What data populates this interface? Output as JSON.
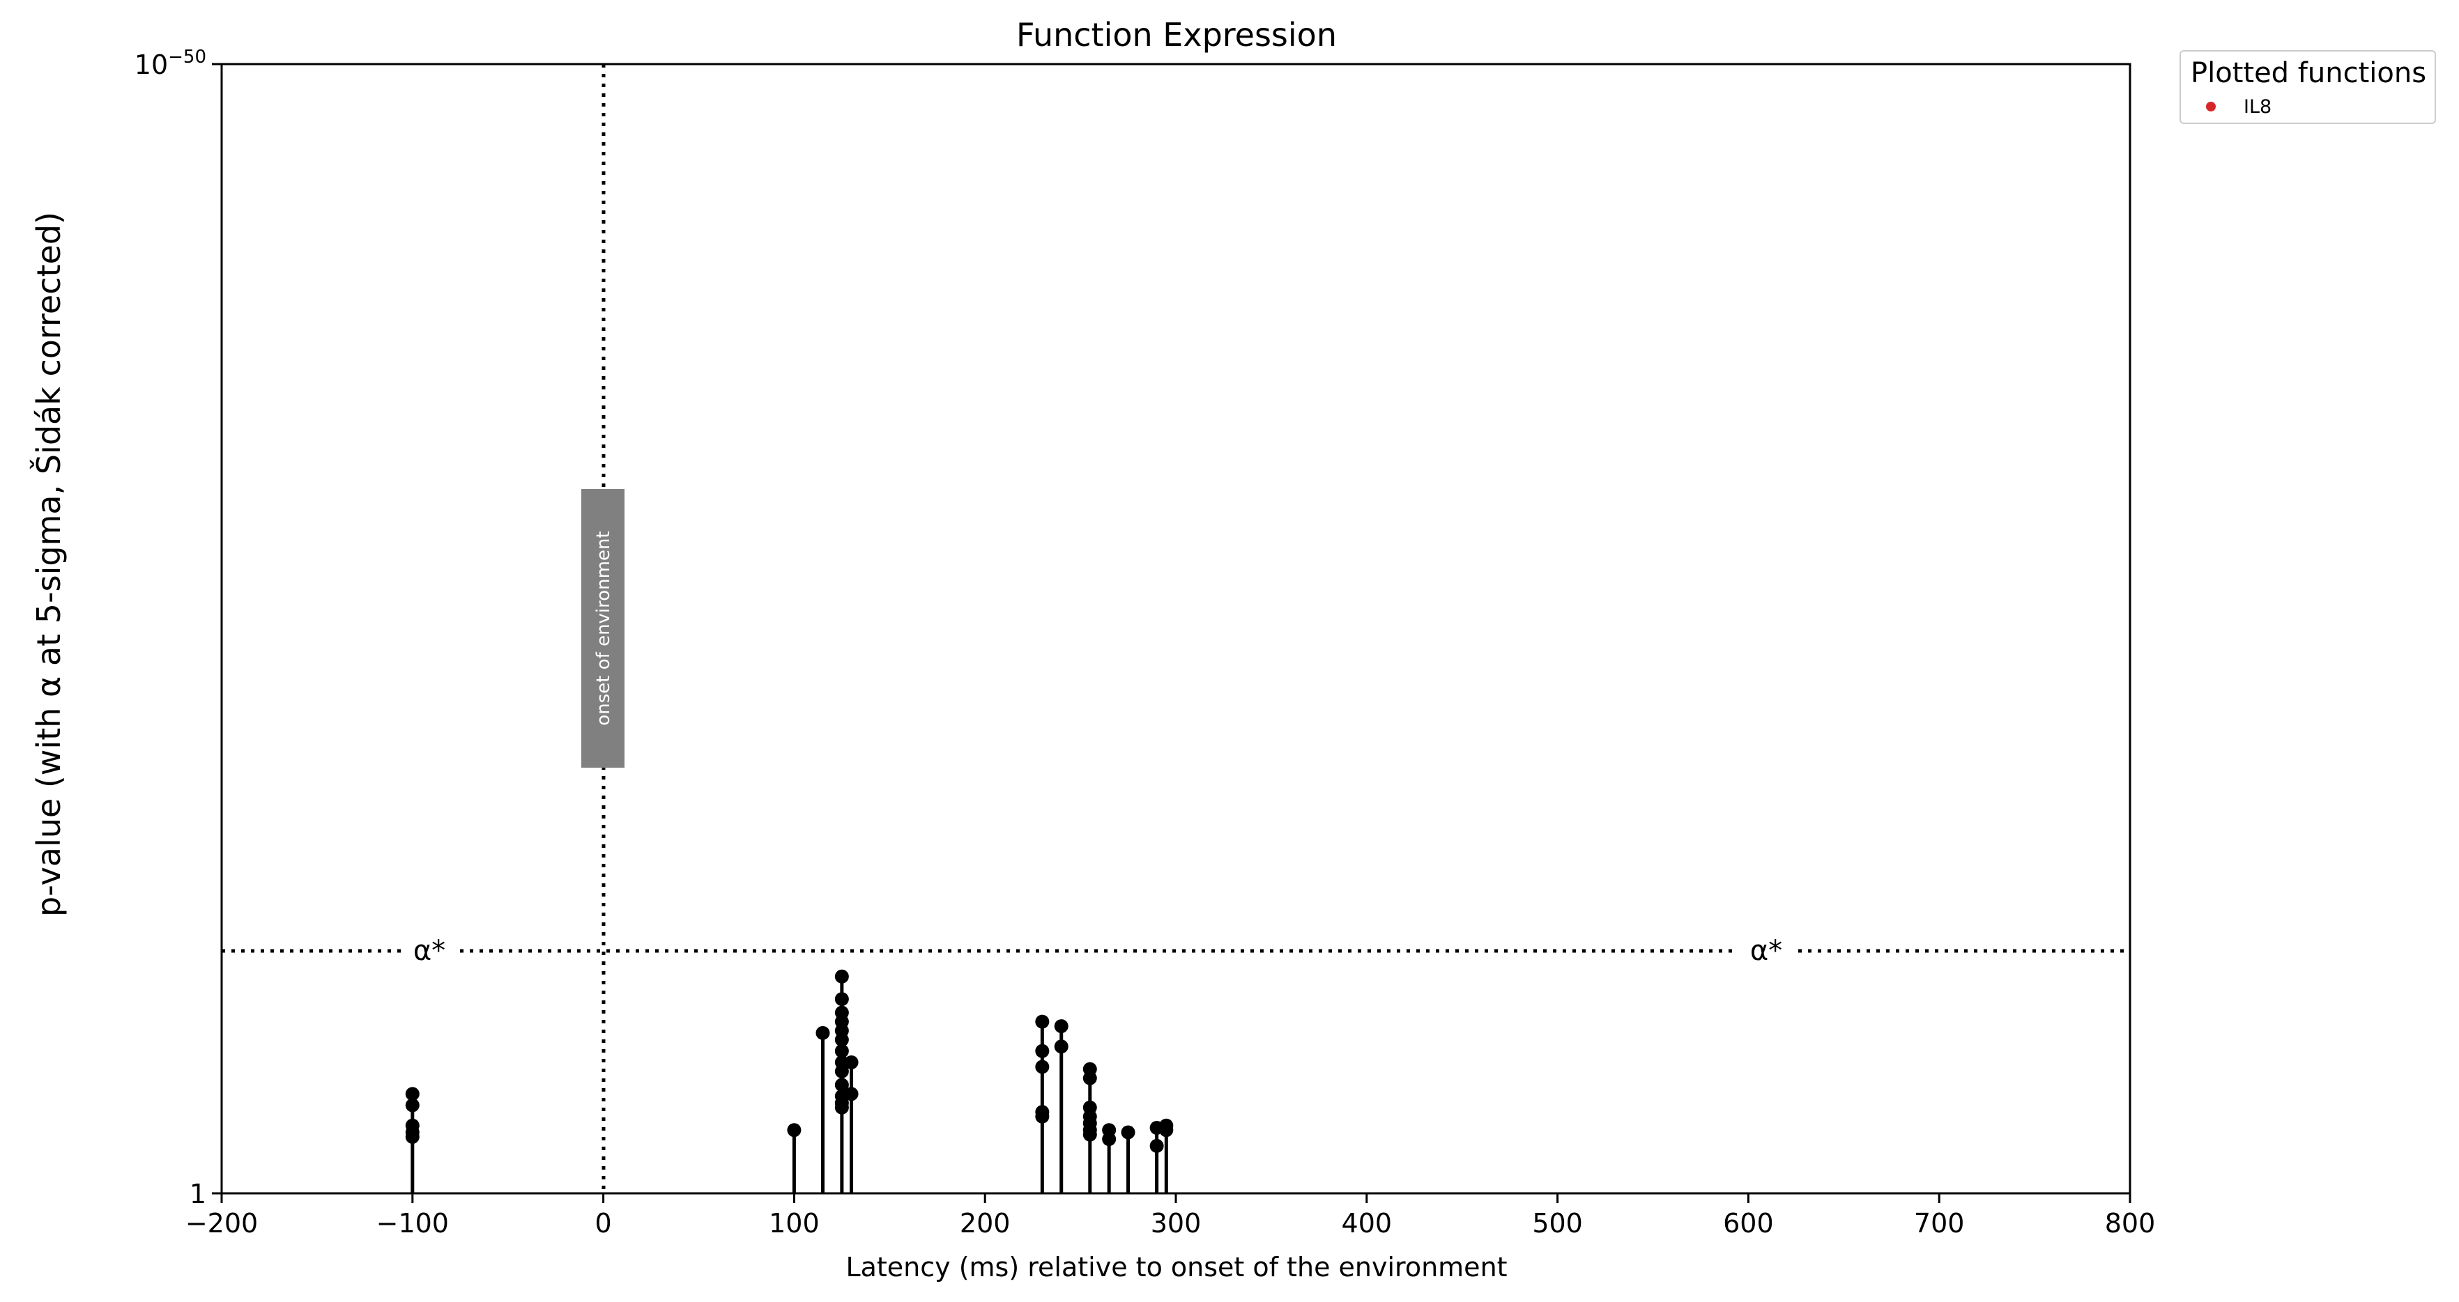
{
  "chart_data": {
    "type": "scatter",
    "title": "Function Expression",
    "xlabel": "Latency (ms) relative to onset of the environment",
    "ylabel": "p-value (with α at 5-sigma, Šidák corrected)",
    "x_ticks": [
      "−200",
      "−100",
      "0",
      "100",
      "200",
      "300",
      "400",
      "500",
      "600",
      "700",
      "800"
    ],
    "xlim": [
      -200,
      800
    ],
    "y_scale": "log (inverted: 1 at bottom, 10^-50 at top)",
    "y_tick_labels": {
      "top_base": "10",
      "top_exp": "−50",
      "bottom": "1"
    },
    "ylim_log10_p": [
      0,
      -50
    ],
    "grid": false,
    "legend": {
      "title": "Plotted functions",
      "placement": "outside top-right",
      "entries": [
        {
          "name": "IL8",
          "color": "#d62728"
        }
      ]
    },
    "alpha_line": {
      "label": "α*",
      "log10_p": -10.8
    },
    "onset_line": {
      "x": 0,
      "label": "onset of environment"
    },
    "series": [
      {
        "name": "IL8",
        "points_log10_p": [
          [
            -100,
            -4.4
          ],
          [
            -100,
            -3.9
          ],
          [
            -100,
            -3.0
          ],
          [
            -100,
            -2.7
          ],
          [
            -100,
            -2.5
          ],
          [
            100,
            -2.8
          ],
          [
            115,
            -7.1
          ],
          [
            125,
            -9.6
          ],
          [
            125,
            -8.6
          ],
          [
            125,
            -8.0
          ],
          [
            125,
            -7.6
          ],
          [
            125,
            -7.2
          ],
          [
            125,
            -6.8
          ],
          [
            125,
            -6.3
          ],
          [
            125,
            -5.8
          ],
          [
            125,
            -5.4
          ],
          [
            125,
            -4.8
          ],
          [
            125,
            -4.3
          ],
          [
            125,
            -4.0
          ],
          [
            125,
            -3.8
          ],
          [
            130,
            -5.8
          ],
          [
            130,
            -4.4
          ],
          [
            230,
            -7.6
          ],
          [
            230,
            -6.3
          ],
          [
            230,
            -5.6
          ],
          [
            230,
            -3.6
          ],
          [
            230,
            -3.4
          ],
          [
            240,
            -7.4
          ],
          [
            240,
            -6.5
          ],
          [
            255,
            -5.5
          ],
          [
            255,
            -5.1
          ],
          [
            255,
            -3.8
          ],
          [
            255,
            -3.4
          ],
          [
            255,
            -3.1
          ],
          [
            255,
            -2.8
          ],
          [
            255,
            -2.6
          ],
          [
            265,
            -2.8
          ],
          [
            265,
            -2.4
          ],
          [
            275,
            -2.7
          ],
          [
            290,
            -2.9
          ],
          [
            290,
            -2.1
          ],
          [
            295,
            -3.0
          ],
          [
            295,
            -2.8
          ]
        ]
      }
    ]
  }
}
